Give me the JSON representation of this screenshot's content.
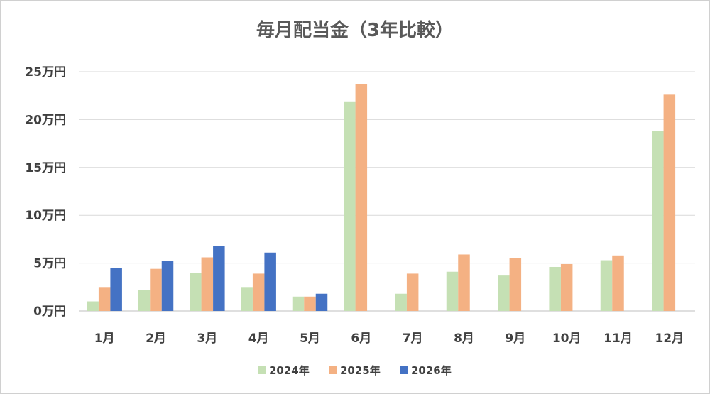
{
  "chart_data": {
    "type": "bar",
    "title": "毎月配当金（3年比較）",
    "categories": [
      "1月",
      "2月",
      "3月",
      "4月",
      "5月",
      "6月",
      "7月",
      "8月",
      "9月",
      "10月",
      "11月",
      "12月"
    ],
    "yticks": [
      "0万円",
      "5万円",
      "10万円",
      "15万円",
      "20万円",
      "25万円"
    ],
    "ylim": [
      0,
      250000
    ],
    "grid": true,
    "legend": "bottom",
    "series": [
      {
        "name": "2024年",
        "color": "#c5e0b4",
        "values": [
          10000,
          22000,
          40000,
          25000,
          15000,
          219000,
          18000,
          41000,
          37000,
          46000,
          53000,
          188000
        ]
      },
      {
        "name": "2025年",
        "color": "#f4b183",
        "values": [
          25000,
          44000,
          56000,
          39000,
          15000,
          237000,
          39000,
          59000,
          55000,
          49000,
          58000,
          226000
        ]
      },
      {
        "name": "2026年",
        "color": "#4472c4",
        "values": [
          45000,
          52000,
          68000,
          61000,
          18000,
          null,
          null,
          null,
          null,
          null,
          null,
          null
        ]
      }
    ]
  }
}
